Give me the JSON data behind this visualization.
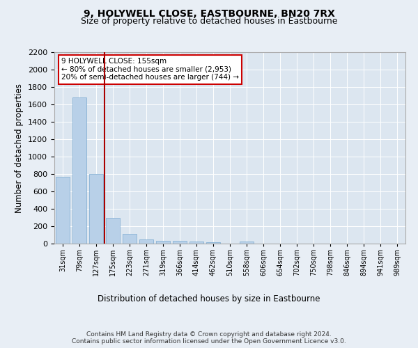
{
  "title": "9, HOLYWELL CLOSE, EASTBOURNE, BN20 7RX",
  "subtitle": "Size of property relative to detached houses in Eastbourne",
  "xlabel": "Distribution of detached houses by size in Eastbourne",
  "ylabel": "Number of detached properties",
  "categories": [
    "31sqm",
    "79sqm",
    "127sqm",
    "175sqm",
    "223sqm",
    "271sqm",
    "319sqm",
    "366sqm",
    "414sqm",
    "462sqm",
    "510sqm",
    "558sqm",
    "606sqm",
    "654sqm",
    "702sqm",
    "750sqm",
    "798sqm",
    "846sqm",
    "894sqm",
    "941sqm",
    "989sqm"
  ],
  "values": [
    770,
    1680,
    800,
    300,
    115,
    45,
    35,
    30,
    22,
    20,
    0,
    25,
    0,
    0,
    0,
    0,
    0,
    0,
    0,
    0,
    0
  ],
  "bar_color": "#b8d0e8",
  "bar_edge_color": "#7aaad0",
  "vline_color": "#aa0000",
  "annotation_title": "9 HOLYWELL CLOSE: 155sqm",
  "annotation_line1": "← 80% of detached houses are smaller (2,953)",
  "annotation_line2": "20% of semi-detached houses are larger (744) →",
  "annotation_box_color": "#ffffff",
  "annotation_border_color": "#cc0000",
  "ylim": [
    0,
    2200
  ],
  "yticks": [
    0,
    200,
    400,
    600,
    800,
    1000,
    1200,
    1400,
    1600,
    1800,
    2000,
    2200
  ],
  "background_color": "#e8eef5",
  "plot_background": "#dce6f0",
  "footer": "Contains HM Land Registry data © Crown copyright and database right 2024.\nContains public sector information licensed under the Open Government Licence v3.0.",
  "title_fontsize": 10,
  "subtitle_fontsize": 9,
  "xlabel_fontsize": 8.5,
  "ylabel_fontsize": 8.5
}
